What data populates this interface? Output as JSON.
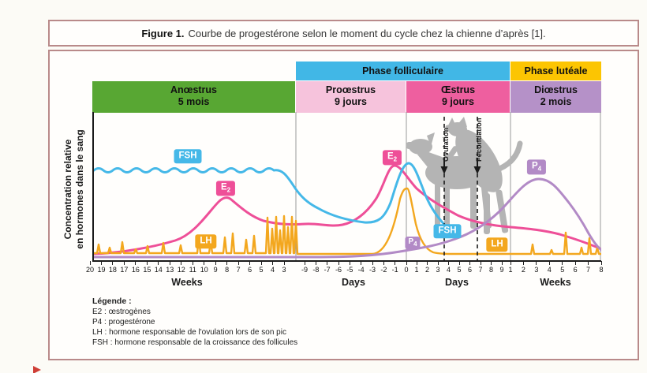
{
  "figure_title": {
    "prefix": "Figure 1.",
    "rest": "Courbe de progestérone selon le moment du cycle chez la chienne d’après [1]."
  },
  "y_axis_label": {
    "line1": "Concentration relative",
    "line2": "en hormones dans le sang"
  },
  "phase_bands": {
    "folliculaire": {
      "label": "Phase folliculaire",
      "color": "#41b7e6"
    },
    "luteale": {
      "label": "Phase lutéale",
      "color": "#fcc502"
    },
    "anoestrus": {
      "name": "Anœstrus",
      "duration": "5 mois",
      "color": "#58a733"
    },
    "prooestrus": {
      "name": "Proœstrus",
      "duration": "9 jours",
      "color": "#f6c3dc"
    },
    "oestrus": {
      "name": "Œstrus",
      "duration": "9 jours",
      "color": "#ee5f9f"
    },
    "dioestrus": {
      "name": "Diœstrus",
      "duration": "2 mois",
      "color": "#b591c8"
    }
  },
  "events": {
    "ovulation": "Ovulation",
    "fecondation": "Fécondation"
  },
  "curve_labels": {
    "fsh": "FSH",
    "lh": "LH",
    "e_main": "E",
    "e_sub": "2",
    "p_main": "P",
    "p_sub": "4"
  },
  "x_axis": {
    "groups": [
      {
        "label": "Weeks",
        "ticks": [
          "20",
          "19",
          "18",
          "17",
          "16",
          "15",
          "14",
          "13",
          "12",
          "11",
          "10",
          "9",
          "8",
          "7",
          "6",
          "5",
          "4",
          "3"
        ]
      },
      {
        "label": "Days",
        "ticks": [
          "-9",
          "-8",
          "-7",
          "-6",
          "-5",
          "-4",
          "-3",
          "-2",
          "-1",
          "0"
        ]
      },
      {
        "label": "Days",
        "ticks": [
          "1",
          "2",
          "3",
          "4",
          "5",
          "6",
          "7",
          "8",
          "9"
        ]
      },
      {
        "label": "Weeks",
        "ticks": [
          "1",
          "2",
          "3",
          "4",
          "5",
          "6",
          "7",
          "8"
        ]
      }
    ]
  },
  "legend": {
    "heading": "Légende :",
    "items": [
      "E2 : œstrogènes",
      "P4 : progestérone",
      "LH : hormone responsable de l'ovulation lors de son pic",
      "FSH : hormone responsable de la croissance des follicules"
    ]
  },
  "colors": {
    "border": "#b98a8a",
    "fsh": "#45b8e8",
    "e2": "#ee4f98",
    "lh": "#f3a71e",
    "p4": "#b28ac6",
    "dog_silhouette": "#b4b4b4",
    "red_marker": "#cf3e36"
  },
  "chart_data": {
    "type": "line",
    "title": "Courbe de progestérone selon le moment du cycle chez la chienne",
    "ylabel": "Concentration relative en hormones dans le sang",
    "y_scale": "relative, unitless (values estimated 0-100 from plot height)",
    "x_sections": [
      {
        "phase": "Anœstrus",
        "duration": "5 mois",
        "unit": "Weeks",
        "ticks": [
          20,
          19,
          18,
          17,
          16,
          15,
          14,
          13,
          12,
          11,
          10,
          9,
          8,
          7,
          6,
          5,
          4,
          3
        ]
      },
      {
        "phase": "Proœstrus",
        "duration": "9 jours",
        "unit": "Days",
        "ticks": [
          -9,
          -8,
          -7,
          -6,
          -5,
          -4,
          -3,
          -2,
          -1,
          0
        ]
      },
      {
        "phase": "Œstrus",
        "duration": "9 jours",
        "unit": "Days",
        "ticks": [
          1,
          2,
          3,
          4,
          5,
          6,
          7,
          8,
          9
        ]
      },
      {
        "phase": "Diœstrus",
        "duration": "2 mois",
        "unit": "Weeks",
        "ticks": [
          1,
          2,
          3,
          4,
          5,
          6,
          7,
          8
        ]
      }
    ],
    "series": [
      {
        "name": "FSH",
        "color": "#45b8e8",
        "description": "High wavy plateau through anœstrus, falls at end of anœstrus, dips during proœstrus, sharp surge at day 0, then declines",
        "key_points": [
          {
            "x": "anœstrus weeks 20-4",
            "value": 62
          },
          {
            "x": "proœstrus day -3",
            "value": 26
          },
          {
            "x": "day 0 (surge)",
            "value": 66
          },
          {
            "x": "œstrus day 3",
            "value": 21
          }
        ]
      },
      {
        "name": "E2",
        "color": "#ee4f98",
        "description": "Low baseline, moderate rise peaking around week 9-8 of anœstrus, dip, then main peak at day -1/0, slow decline through œstrus and diœstrus",
        "key_points": [
          {
            "x": "anœstrus week 20",
            "value": 5
          },
          {
            "x": "anœstrus week 9 (first peak)",
            "value": 42
          },
          {
            "x": "proœstrus day -6",
            "value": 25
          },
          {
            "x": "day -1 (main peak)",
            "value": 64
          },
          {
            "x": "œstrus day 9",
            "value": 24
          },
          {
            "x": "diœstrus week 8",
            "value": 9
          }
        ]
      },
      {
        "name": "LH",
        "color": "#f3a71e",
        "description": "Low pulsatile baseline with spikes growing toward late anœstrus, large ovulatory surge at day 0, small pulses in diœstrus",
        "key_points": [
          {
            "x": "anœstrus baseline",
            "value": 5
          },
          {
            "x": "late anœstrus pulses (weeks 4-3)",
            "value": 30
          },
          {
            "x": "day 0 (LH surge)",
            "value": 49
          },
          {
            "x": "diœstrus pulses",
            "value": 18
          }
        ]
      },
      {
        "name": "P4",
        "color": "#b28ac6",
        "description": "Near-zero through anœstrus and proœstrus, begins rising at the LH surge (day 0), continues through œstrus, broad peak around weeks 2-3 of diœstrus, back near baseline by week 8",
        "key_points": [
          {
            "x": "anœstrus/proœstrus",
            "value": 3
          },
          {
            "x": "day 0",
            "value": 5
          },
          {
            "x": "ovulation (day 3)",
            "value": 10
          },
          {
            "x": "fécondation (day 6)",
            "value": 17
          },
          {
            "x": "diœstrus week 2-3 (peak)",
            "value": 56
          },
          {
            "x": "diœstrus week 8",
            "value": 8
          }
        ]
      }
    ],
    "events": [
      {
        "label": "Ovulation",
        "x": "œstrus day 3",
        "marker": "vertical dashed line with down arrow"
      },
      {
        "label": "Fécondation",
        "x": "œstrus day 6",
        "marker": "vertical dashed line with down arrow"
      }
    ],
    "legend_position": "bottom-left",
    "grid": "vertical phase-boundary lines only"
  }
}
